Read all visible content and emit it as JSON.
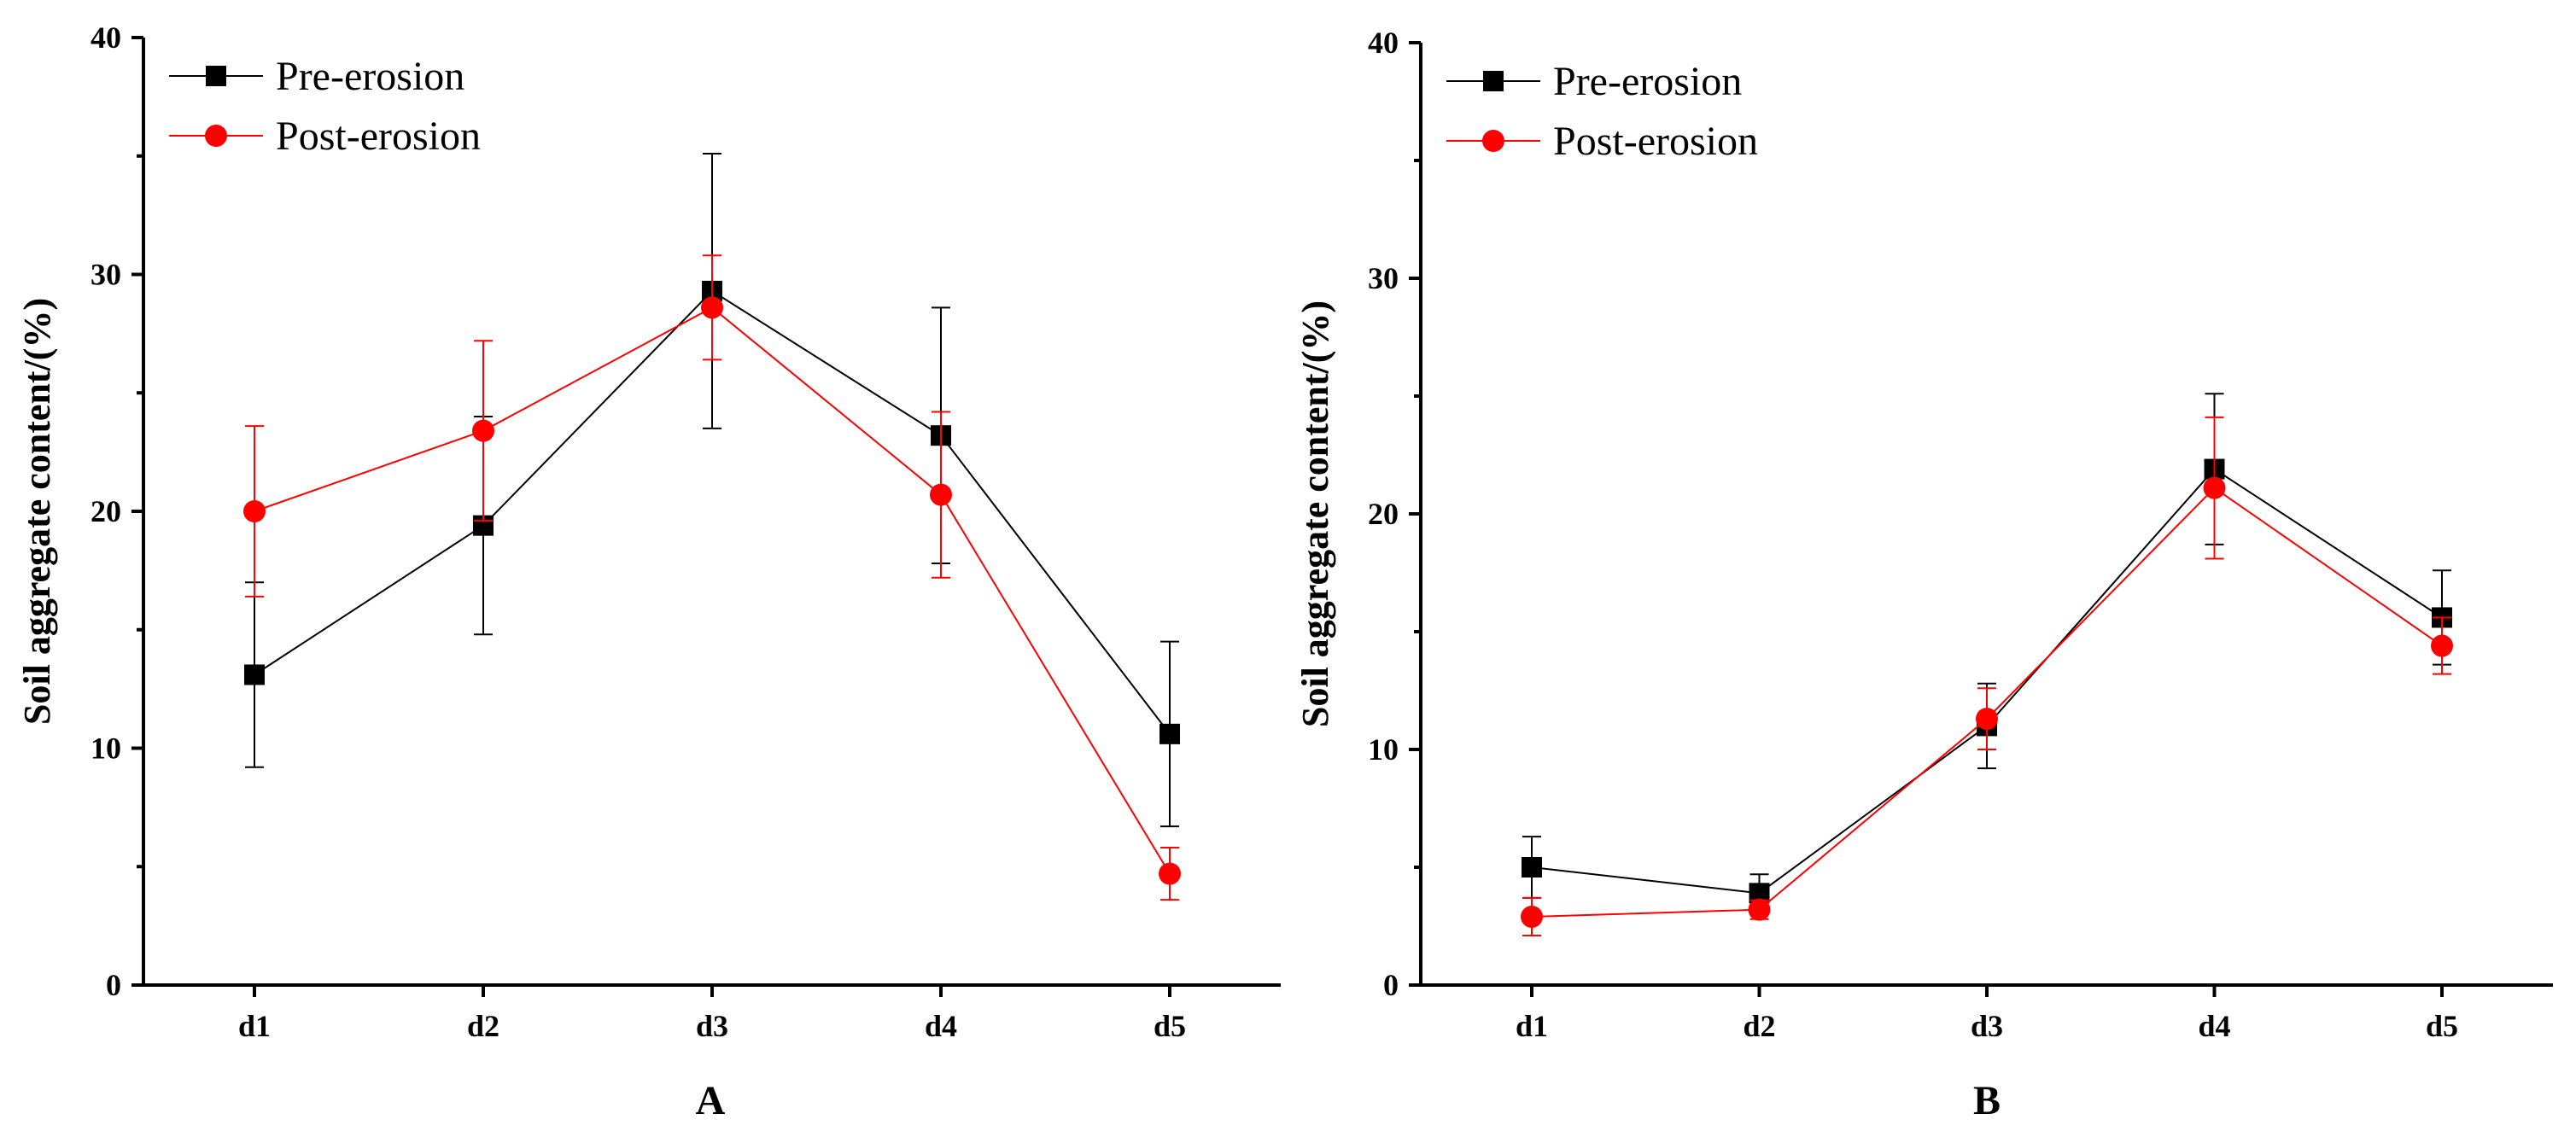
{
  "chart_data": [
    {
      "type": "line",
      "panel_label": "A",
      "categories": [
        "d1",
        "d2",
        "d3",
        "d4",
        "d5"
      ],
      "ylabel": "Soil aggregate content/(%)",
      "xlabel": "",
      "ylim": [
        0,
        40
      ],
      "yticks": [
        0,
        10,
        20,
        30,
        40
      ],
      "grid": false,
      "legend_position": "top-left",
      "series": [
        {
          "name": "Pre-erosion",
          "color": "#000000",
          "marker": "square",
          "values": [
            13.1,
            19.4,
            29.3,
            23.2,
            10.6
          ],
          "errors": [
            3.9,
            4.6,
            5.8,
            5.4,
            3.9
          ]
        },
        {
          "name": "Post-erosion",
          "color": "#ff0000",
          "marker": "circle",
          "values": [
            20.0,
            23.4,
            28.6,
            20.7,
            4.7
          ],
          "errors": [
            3.6,
            3.8,
            2.2,
            3.5,
            1.1
          ]
        }
      ]
    },
    {
      "type": "line",
      "panel_label": "B",
      "categories": [
        "d1",
        "d2",
        "d3",
        "d4",
        "d5"
      ],
      "ylabel": "Soil aggregate content/(%)",
      "xlabel": "",
      "ylim": [
        0,
        40
      ],
      "yticks": [
        0,
        10,
        20,
        30,
        40
      ],
      "grid": false,
      "legend_position": "top-left",
      "series": [
        {
          "name": "Pre-erosion",
          "color": "#000000",
          "marker": "square",
          "values": [
            5.0,
            3.9,
            11.0,
            21.9,
            15.6
          ],
          "errors": [
            1.3,
            0.8,
            1.8,
            3.2,
            2.0
          ]
        },
        {
          "name": "Post-erosion",
          "color": "#ff0000",
          "marker": "circle",
          "values": [
            2.9,
            3.2,
            11.3,
            21.1,
            14.4
          ],
          "errors": [
            0.8,
            0.4,
            1.3,
            3.0,
            1.2
          ]
        }
      ]
    }
  ]
}
